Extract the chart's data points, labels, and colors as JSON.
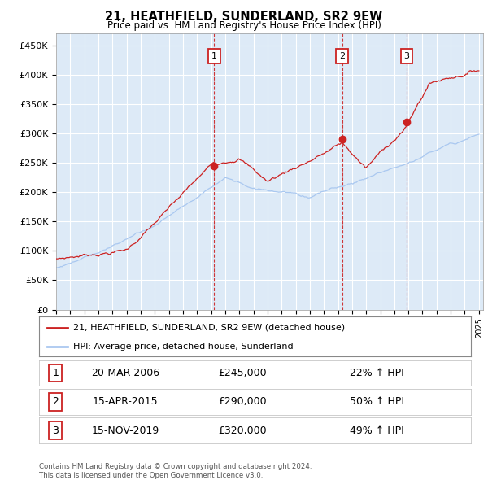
{
  "title": "21, HEATHFIELD, SUNDERLAND, SR2 9EW",
  "subtitle": "Price paid vs. HM Land Registry's House Price Index (HPI)",
  "ylim": [
    0,
    470000
  ],
  "yticks": [
    0,
    50000,
    100000,
    150000,
    200000,
    250000,
    300000,
    350000,
    400000,
    450000
  ],
  "ytick_labels": [
    "£0",
    "£50K",
    "£100K",
    "£150K",
    "£200K",
    "£250K",
    "£300K",
    "£350K",
    "£400K",
    "£450K"
  ],
  "background_color": "#ddeaf7",
  "grid_color": "#ffffff",
  "sale_years": [
    2006.22,
    2015.29,
    2019.88
  ],
  "sale_prices": [
    245000,
    290000,
    320000
  ],
  "sale_labels": [
    "1",
    "2",
    "3"
  ],
  "legend_line1": "21, HEATHFIELD, SUNDERLAND, SR2 9EW (detached house)",
  "legend_line2": "HPI: Average price, detached house, Sunderland",
  "table_rows": [
    {
      "label": "1",
      "date": "20-MAR-2006",
      "price": "£245,000",
      "pct": "22% ↑ HPI"
    },
    {
      "label": "2",
      "date": "15-APR-2015",
      "price": "£290,000",
      "pct": "50% ↑ HPI"
    },
    {
      "label": "3",
      "date": "15-NOV-2019",
      "price": "£320,000",
      "pct": "49% ↑ HPI"
    }
  ],
  "footer": "Contains HM Land Registry data © Crown copyright and database right 2024.\nThis data is licensed under the Open Government Licence v3.0.",
  "hpi_color": "#aac8f0",
  "sale_line_color": "#cc2222",
  "marker_box_color": "#cc2222",
  "x_start_year": 1995,
  "x_end_year": 2025
}
